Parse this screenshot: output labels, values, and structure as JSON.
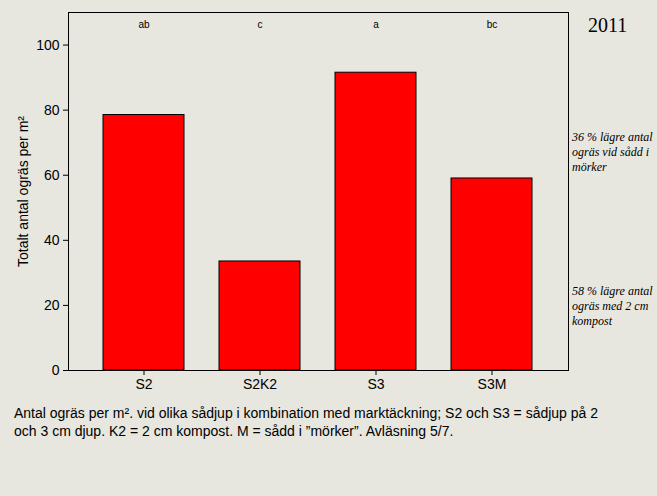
{
  "chart_data": {
    "type": "bar",
    "title": "2011",
    "categories": [
      "S2",
      "S2K2",
      "S3",
      "S3M"
    ],
    "values": [
      78.5,
      33.5,
      91.5,
      59
    ],
    "significance_letters": [
      "ab",
      "c",
      "a",
      "bc"
    ],
    "color": "#ff0000",
    "y_label": "Totalt antal ogräs per m²",
    "ylim": [
      0,
      110
    ],
    "yticks": [
      0,
      20,
      40,
      60,
      80,
      100
    ],
    "annotations": [
      "36 % lägre antal ogräs vid sådd i mörker",
      "58 % lägre antal ogräs med 2 cm kompost"
    ],
    "caption": "Antal ogräs per m². vid olika sådjup i kombination med marktäckning; S2 och S3 = sådjup på 2 och 3 cm djup. K2 = 2 cm kompost. M = sådd i ”mörker”. Avläsning 5/7."
  }
}
